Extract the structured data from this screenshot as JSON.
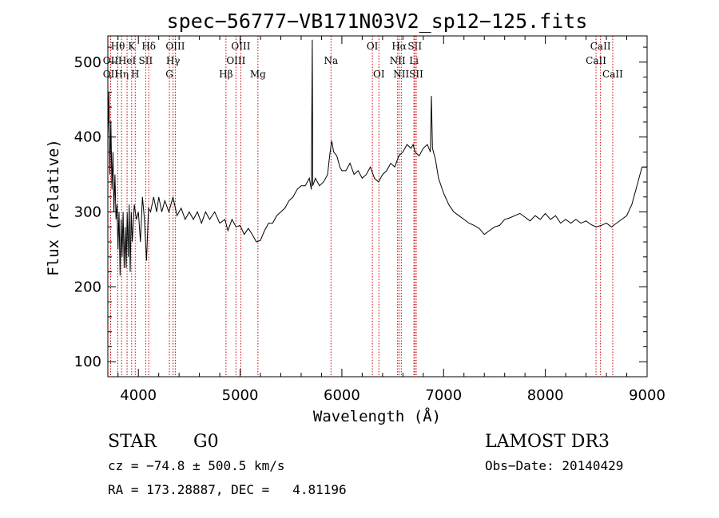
{
  "chart_data": {
    "type": "line",
    "title": "spec−56777−VB171N03V2_sp12−125.fits",
    "xlabel": "Wavelength (Å)",
    "ylabel": "Flux (relative)",
    "xlim": [
      3700,
      9000
    ],
    "ylim": [
      80,
      535
    ],
    "xticks": [
      4000,
      5000,
      6000,
      7000,
      8000,
      9000
    ],
    "yticks": [
      100,
      200,
      300,
      400,
      500
    ],
    "grid": false,
    "series": [
      {
        "points": [
          [
            3700,
            400
          ],
          [
            3710,
            460
          ],
          [
            3720,
            350
          ],
          [
            3730,
            420
          ],
          [
            3740,
            330
          ],
          [
            3750,
            380
          ],
          [
            3760,
            300
          ],
          [
            3770,
            350
          ],
          [
            3780,
            290
          ],
          [
            3790,
            310
          ],
          [
            3800,
            250
          ],
          [
            3810,
            300
          ],
          [
            3820,
            215
          ],
          [
            3830,
            290
          ],
          [
            3840,
            240
          ],
          [
            3850,
            300
          ],
          [
            3860,
            225
          ],
          [
            3870,
            280
          ],
          [
            3880,
            225
          ],
          [
            3890,
            300
          ],
          [
            3900,
            240
          ],
          [
            3910,
            310
          ],
          [
            3920,
            220
          ],
          [
            3930,
            300
          ],
          [
            3940,
            260
          ],
          [
            3960,
            310
          ],
          [
            3980,
            290
          ],
          [
            4000,
            300
          ],
          [
            4020,
            260
          ],
          [
            4040,
            320
          ],
          [
            4060,
            290
          ],
          [
            4080,
            235
          ],
          [
            4100,
            305
          ],
          [
            4120,
            300
          ],
          [
            4150,
            320
          ],
          [
            4180,
            300
          ],
          [
            4200,
            320
          ],
          [
            4230,
            300
          ],
          [
            4260,
            315
          ],
          [
            4300,
            300
          ],
          [
            4340,
            320
          ],
          [
            4380,
            295
          ],
          [
            4420,
            305
          ],
          [
            4460,
            290
          ],
          [
            4500,
            300
          ],
          [
            4540,
            290
          ],
          [
            4580,
            300
          ],
          [
            4620,
            285
          ],
          [
            4660,
            300
          ],
          [
            4700,
            290
          ],
          [
            4750,
            300
          ],
          [
            4800,
            285
          ],
          [
            4850,
            290
          ],
          [
            4880,
            275
          ],
          [
            4920,
            290
          ],
          [
            4960,
            280
          ],
          [
            5000,
            282
          ],
          [
            5040,
            270
          ],
          [
            5080,
            278
          ],
          [
            5120,
            270
          ],
          [
            5160,
            260
          ],
          [
            5200,
            262
          ],
          [
            5240,
            275
          ],
          [
            5280,
            285
          ],
          [
            5320,
            285
          ],
          [
            5360,
            295
          ],
          [
            5400,
            300
          ],
          [
            5440,
            305
          ],
          [
            5480,
            315
          ],
          [
            5520,
            320
          ],
          [
            5560,
            330
          ],
          [
            5600,
            335
          ],
          [
            5640,
            335
          ],
          [
            5680,
            345
          ],
          [
            5700,
            330
          ],
          [
            5709,
            530
          ],
          [
            5714,
            335
          ],
          [
            5740,
            345
          ],
          [
            5780,
            335
          ],
          [
            5820,
            340
          ],
          [
            5860,
            350
          ],
          [
            5880,
            375
          ],
          [
            5900,
            395
          ],
          [
            5920,
            380
          ],
          [
            5950,
            375
          ],
          [
            5980,
            360
          ],
          [
            6000,
            355
          ],
          [
            6040,
            355
          ],
          [
            6080,
            365
          ],
          [
            6120,
            350
          ],
          [
            6160,
            355
          ],
          [
            6200,
            345
          ],
          [
            6240,
            350
          ],
          [
            6280,
            360
          ],
          [
            6320,
            345
          ],
          [
            6360,
            340
          ],
          [
            6400,
            350
          ],
          [
            6440,
            355
          ],
          [
            6480,
            365
          ],
          [
            6520,
            360
          ],
          [
            6560,
            375
          ],
          [
            6600,
            380
          ],
          [
            6640,
            390
          ],
          [
            6680,
            385
          ],
          [
            6700,
            390
          ],
          [
            6720,
            380
          ],
          [
            6760,
            375
          ],
          [
            6800,
            385
          ],
          [
            6840,
            390
          ],
          [
            6870,
            380
          ],
          [
            6880,
            455
          ],
          [
            6890,
            385
          ],
          [
            6920,
            370
          ],
          [
            6950,
            345
          ],
          [
            7000,
            325
          ],
          [
            7050,
            310
          ],
          [
            7100,
            300
          ],
          [
            7150,
            295
          ],
          [
            7200,
            290
          ],
          [
            7250,
            285
          ],
          [
            7300,
            282
          ],
          [
            7350,
            278
          ],
          [
            7400,
            270
          ],
          [
            7450,
            275
          ],
          [
            7500,
            280
          ],
          [
            7550,
            282
          ],
          [
            7600,
            290
          ],
          [
            7650,
            292
          ],
          [
            7700,
            295
          ],
          [
            7750,
            298
          ],
          [
            7800,
            293
          ],
          [
            7850,
            288
          ],
          [
            7900,
            295
          ],
          [
            7950,
            290
          ],
          [
            8000,
            298
          ],
          [
            8050,
            290
          ],
          [
            8100,
            295
          ],
          [
            8150,
            285
          ],
          [
            8200,
            290
          ],
          [
            8250,
            285
          ],
          [
            8300,
            290
          ],
          [
            8350,
            285
          ],
          [
            8400,
            288
          ],
          [
            8450,
            283
          ],
          [
            8500,
            280
          ],
          [
            8550,
            282
          ],
          [
            8600,
            285
          ],
          [
            8650,
            280
          ],
          [
            8700,
            285
          ],
          [
            8750,
            290
          ],
          [
            8800,
            295
          ],
          [
            8850,
            310
          ],
          [
            8900,
            335
          ],
          [
            8950,
            360
          ],
          [
            9000,
            360
          ]
        ]
      }
    ],
    "lines": [
      {
        "label": "Hθ",
        "x": 3798,
        "row": 0
      },
      {
        "label": "OII",
        "x": 3727,
        "row": 1
      },
      {
        "label": "OII",
        "x": 3727,
        "row": 2
      },
      {
        "label": "Hη",
        "x": 3835,
        "row": 2
      },
      {
        "label": "K",
        "x": 3934,
        "row": 0
      },
      {
        "label": "HeI",
        "x": 3889,
        "row": 1
      },
      {
        "label": "H",
        "x": 3969,
        "row": 2
      },
      {
        "label": "Hδ",
        "x": 4102,
        "row": 0
      },
      {
        "label": "SII",
        "x": 4072,
        "row": 1
      },
      {
        "label": "OIII",
        "x": 4363,
        "row": 0
      },
      {
        "label": "Hγ",
        "x": 4341,
        "row": 1
      },
      {
        "label": "G",
        "x": 4305,
        "row": 2
      },
      {
        "label": "OIII",
        "x": 5007,
        "row": 0
      },
      {
        "label": "OIII",
        "x": 4959,
        "row": 1
      },
      {
        "label": "Hβ",
        "x": 4861,
        "row": 2
      },
      {
        "label": "Mg",
        "x": 5175,
        "row": 2
      },
      {
        "label": "Na",
        "x": 5893,
        "row": 1
      },
      {
        "label": "OI",
        "x": 6300,
        "row": 0
      },
      {
        "label": "OI",
        "x": 6364,
        "row": 2
      },
      {
        "label": "Hα",
        "x": 6563,
        "row": 0
      },
      {
        "label": "NII",
        "x": 6548,
        "row": 1
      },
      {
        "label": "NII",
        "x": 6584,
        "row": 2
      },
      {
        "label": "SII",
        "x": 6717,
        "row": 0
      },
      {
        "label": "Li",
        "x": 6708,
        "row": 1
      },
      {
        "label": "SII",
        "x": 6731,
        "row": 2
      },
      {
        "label": "CaII",
        "x": 8542,
        "row": 0
      },
      {
        "label": "CaII",
        "x": 8498,
        "row": 1
      },
      {
        "label": "CaII",
        "x": 8662,
        "row": 2
      }
    ],
    "line_color": "#cc0000"
  },
  "info": {
    "class": "STAR",
    "subclass": "G0",
    "survey": "LAMOST DR3",
    "cz": "cz = −74.8 ± 500.5 km/s",
    "obs_date": "Obs−Date: 20140429",
    "radec": "RA = 173.28887, DEC =   4.81196"
  }
}
